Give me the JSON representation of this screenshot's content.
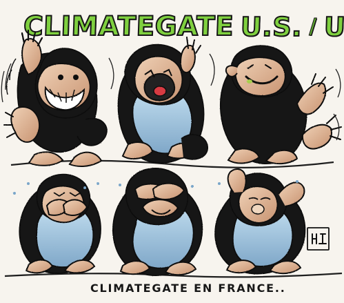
{
  "title": {
    "main": "CLIMATEGATE",
    "us": "U.S.",
    "separator": "/",
    "uk": "U.K."
  },
  "caption": "CLIMATEGATE EN FRANCE..",
  "colors": {
    "title_green": "#7fd03f",
    "ink": "#161616",
    "fur": "#1a1a1a",
    "skin": "#ddb493",
    "belly": "#a9c8df",
    "mouth": "#d83b42",
    "paper": "#f7f4ee"
  }
}
